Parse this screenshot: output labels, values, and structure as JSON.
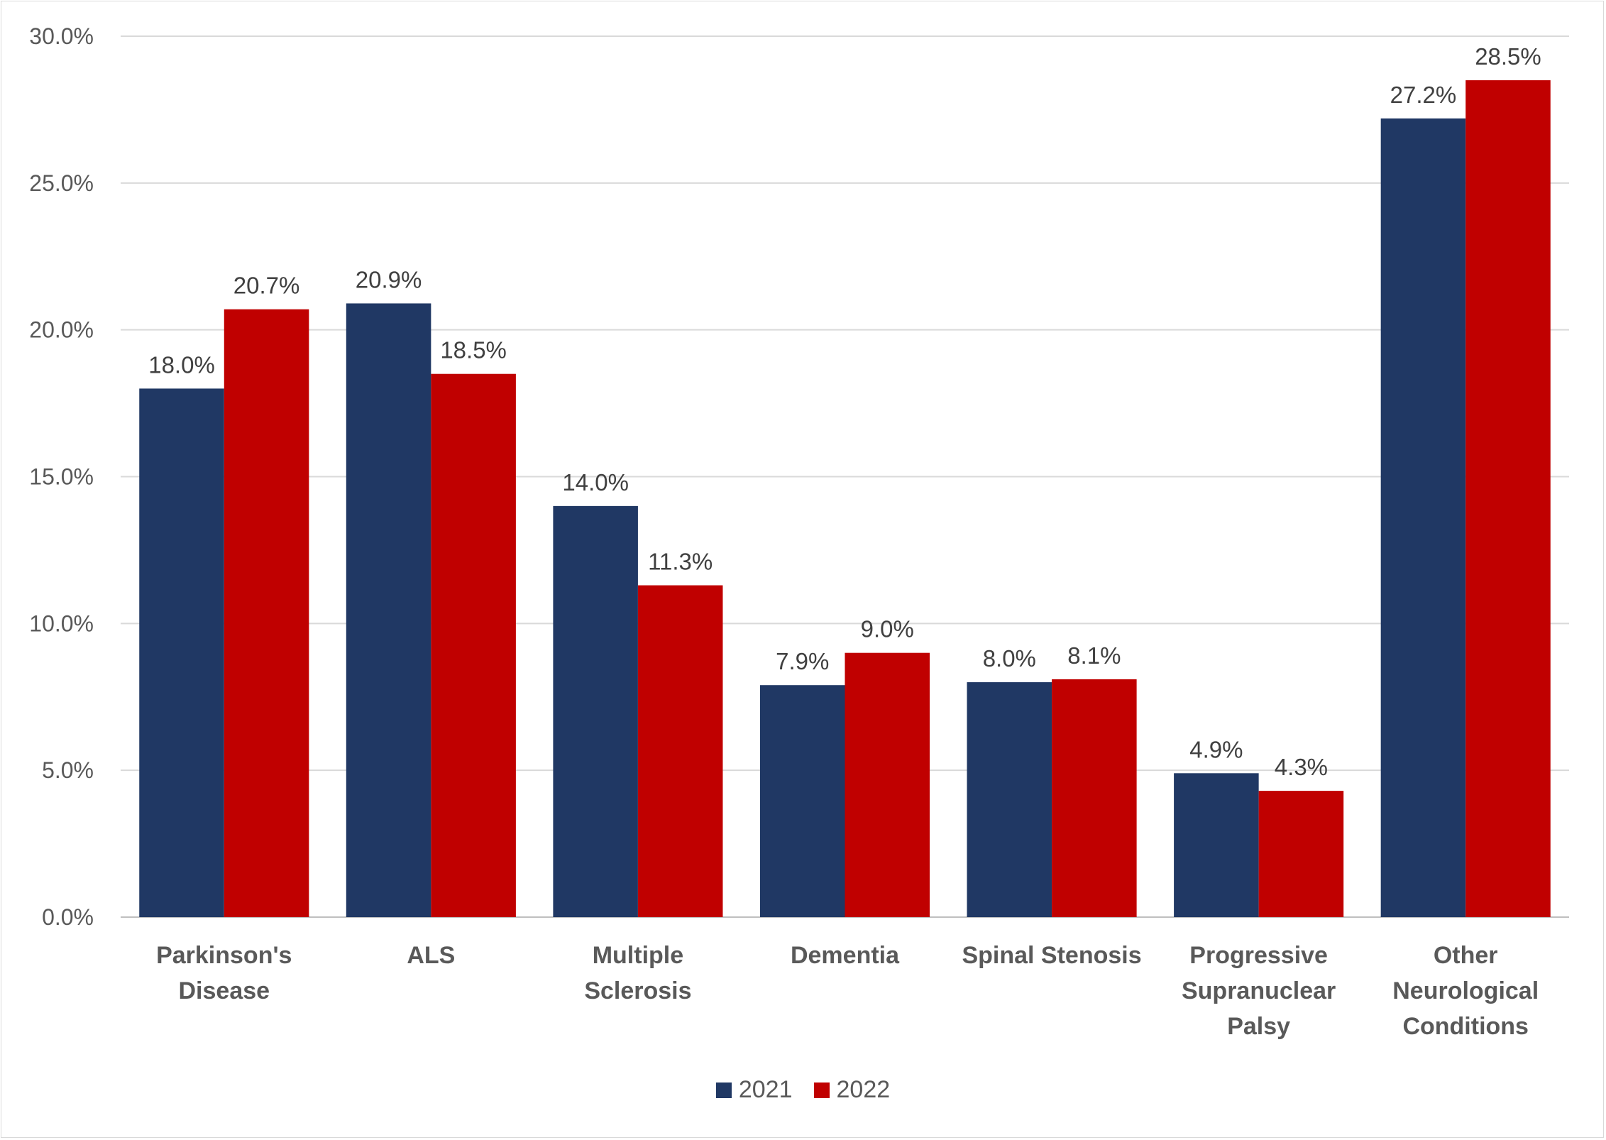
{
  "chart_data": {
    "type": "bar",
    "categories": [
      "Parkinson's Disease",
      "ALS",
      "Multiple Sclerosis",
      "Dementia",
      "Spinal Stenosis",
      "Progressive Supranuclear Palsy",
      "Other Neurological Conditions"
    ],
    "category_lines": [
      [
        "Parkinson's",
        "Disease"
      ],
      [
        "ALS"
      ],
      [
        "Multiple",
        "Sclerosis"
      ],
      [
        "Dementia"
      ],
      [
        "Spinal Stenosis"
      ],
      [
        "Progressive",
        "Supranuclear",
        "Palsy"
      ],
      [
        "Other",
        "Neurological",
        "Conditions"
      ]
    ],
    "series": [
      {
        "name": "2021",
        "color": "#203864",
        "values": [
          18.0,
          20.9,
          14.0,
          7.9,
          8.0,
          4.9,
          27.2
        ]
      },
      {
        "name": "2022",
        "color": "#C00000",
        "values": [
          20.7,
          18.5,
          11.3,
          9.0,
          8.1,
          4.3,
          28.5
        ]
      }
    ],
    "ylim": [
      0,
      30
    ],
    "yticks": [
      "0.0%",
      "5.0%",
      "10.0%",
      "15.0%",
      "20.0%",
      "25.0%",
      "30.0%"
    ],
    "grid": true,
    "legend_position": "bottom",
    "value_format": "percent, 1 decimal"
  }
}
